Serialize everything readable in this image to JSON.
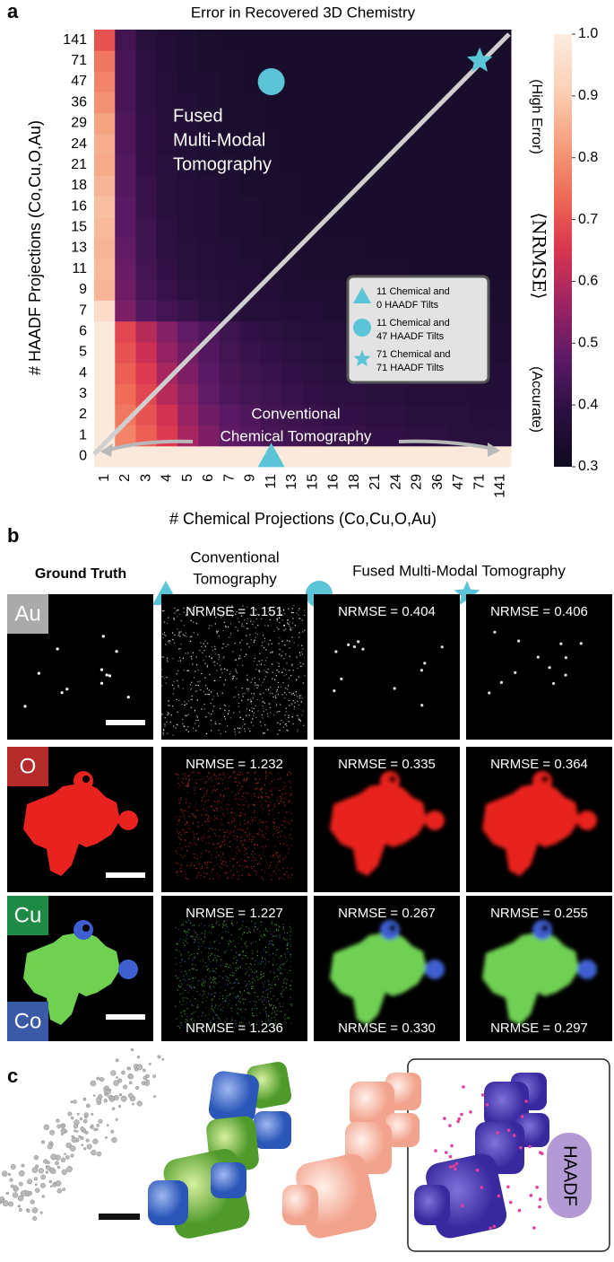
{
  "chart_data": {
    "type": "heatmap",
    "panel_label": "a",
    "title": "Error in Recovered 3D Chemistry",
    "x_label": "# Chemical Projections (Co,Cu,O,Au)",
    "y_label": "# HAADF Projections (Co,Cu,O,Au)",
    "x": [
      "1",
      "2",
      "3",
      "4",
      "5",
      "6",
      "7",
      "9",
      "11",
      "13",
      "15",
      "16",
      "18",
      "21",
      "24",
      "29",
      "36",
      "47",
      "71",
      "141"
    ],
    "y": [
      "0",
      "1",
      "2",
      "3",
      "4",
      "5",
      "6",
      "7",
      "9",
      "11",
      "13",
      "15",
      "16",
      "18",
      "21",
      "24",
      "29",
      "36",
      "47",
      "71",
      "141"
    ],
    "values": [
      [
        0.99,
        0.99,
        0.99,
        0.99,
        0.99,
        0.99,
        0.99,
        0.99,
        0.99,
        0.99,
        0.99,
        0.99,
        0.99,
        0.99,
        0.99,
        0.99,
        0.99,
        0.99,
        0.99,
        0.99
      ],
      [
        0.99,
        0.78,
        0.72,
        0.66,
        0.58,
        0.52,
        0.48,
        0.46,
        0.44,
        0.43,
        0.42,
        0.41,
        0.41,
        0.4,
        0.4,
        0.39,
        0.39,
        0.38,
        0.38,
        0.38
      ],
      [
        0.99,
        0.76,
        0.7,
        0.64,
        0.56,
        0.5,
        0.47,
        0.45,
        0.43,
        0.42,
        0.41,
        0.4,
        0.4,
        0.39,
        0.39,
        0.38,
        0.38,
        0.38,
        0.37,
        0.37
      ],
      [
        0.99,
        0.74,
        0.68,
        0.6,
        0.54,
        0.48,
        0.45,
        0.43,
        0.42,
        0.41,
        0.4,
        0.39,
        0.39,
        0.38,
        0.38,
        0.37,
        0.37,
        0.37,
        0.36,
        0.36
      ],
      [
        0.99,
        0.72,
        0.66,
        0.58,
        0.52,
        0.47,
        0.44,
        0.42,
        0.41,
        0.4,
        0.39,
        0.38,
        0.38,
        0.37,
        0.37,
        0.36,
        0.36,
        0.36,
        0.36,
        0.36
      ],
      [
        0.99,
        0.7,
        0.63,
        0.55,
        0.5,
        0.46,
        0.43,
        0.41,
        0.4,
        0.39,
        0.38,
        0.37,
        0.37,
        0.36,
        0.36,
        0.36,
        0.35,
        0.35,
        0.35,
        0.35
      ],
      [
        0.99,
        0.68,
        0.6,
        0.53,
        0.48,
        0.45,
        0.42,
        0.4,
        0.39,
        0.38,
        0.37,
        0.37,
        0.36,
        0.36,
        0.35,
        0.35,
        0.35,
        0.35,
        0.35,
        0.35
      ],
      [
        0.95,
        0.52,
        0.46,
        0.43,
        0.41,
        0.39,
        0.38,
        0.37,
        0.37,
        0.36,
        0.36,
        0.35,
        0.35,
        0.35,
        0.35,
        0.34,
        0.34,
        0.34,
        0.34,
        0.34
      ],
      [
        0.86,
        0.5,
        0.44,
        0.41,
        0.39,
        0.38,
        0.37,
        0.36,
        0.36,
        0.35,
        0.35,
        0.35,
        0.34,
        0.34,
        0.34,
        0.34,
        0.34,
        0.34,
        0.34,
        0.34
      ],
      [
        0.87,
        0.49,
        0.43,
        0.4,
        0.38,
        0.37,
        0.36,
        0.36,
        0.35,
        0.35,
        0.34,
        0.34,
        0.34,
        0.34,
        0.34,
        0.33,
        0.33,
        0.33,
        0.33,
        0.33
      ],
      [
        0.86,
        0.48,
        0.42,
        0.39,
        0.38,
        0.37,
        0.36,
        0.35,
        0.35,
        0.34,
        0.34,
        0.34,
        0.34,
        0.33,
        0.33,
        0.33,
        0.33,
        0.33,
        0.33,
        0.33
      ],
      [
        0.87,
        0.47,
        0.42,
        0.39,
        0.37,
        0.36,
        0.35,
        0.35,
        0.34,
        0.34,
        0.34,
        0.33,
        0.33,
        0.33,
        0.33,
        0.33,
        0.33,
        0.33,
        0.33,
        0.33
      ],
      [
        0.88,
        0.47,
        0.41,
        0.38,
        0.37,
        0.36,
        0.35,
        0.35,
        0.34,
        0.34,
        0.33,
        0.33,
        0.33,
        0.33,
        0.33,
        0.33,
        0.33,
        0.33,
        0.33,
        0.33
      ],
      [
        0.86,
        0.46,
        0.41,
        0.38,
        0.37,
        0.36,
        0.35,
        0.34,
        0.34,
        0.34,
        0.33,
        0.33,
        0.33,
        0.33,
        0.33,
        0.33,
        0.33,
        0.33,
        0.33,
        0.33
      ],
      [
        0.84,
        0.46,
        0.4,
        0.38,
        0.36,
        0.35,
        0.35,
        0.34,
        0.34,
        0.33,
        0.33,
        0.33,
        0.33,
        0.33,
        0.33,
        0.33,
        0.33,
        0.33,
        0.33,
        0.33
      ],
      [
        0.85,
        0.45,
        0.4,
        0.37,
        0.36,
        0.35,
        0.34,
        0.34,
        0.34,
        0.33,
        0.33,
        0.33,
        0.33,
        0.33,
        0.33,
        0.33,
        0.33,
        0.33,
        0.33,
        0.33
      ],
      [
        0.83,
        0.45,
        0.4,
        0.37,
        0.36,
        0.35,
        0.34,
        0.34,
        0.33,
        0.33,
        0.33,
        0.33,
        0.33,
        0.33,
        0.33,
        0.33,
        0.33,
        0.33,
        0.33,
        0.33
      ],
      [
        0.8,
        0.44,
        0.39,
        0.37,
        0.36,
        0.35,
        0.34,
        0.34,
        0.33,
        0.33,
        0.33,
        0.33,
        0.33,
        0.33,
        0.33,
        0.33,
        0.33,
        0.33,
        0.33,
        0.33
      ],
      [
        0.78,
        0.44,
        0.39,
        0.37,
        0.35,
        0.35,
        0.34,
        0.33,
        0.33,
        0.33,
        0.33,
        0.33,
        0.33,
        0.33,
        0.33,
        0.33,
        0.33,
        0.33,
        0.33,
        0.33
      ],
      [
        0.76,
        0.44,
        0.39,
        0.36,
        0.35,
        0.34,
        0.34,
        0.33,
        0.33,
        0.33,
        0.33,
        0.33,
        0.33,
        0.33,
        0.33,
        0.33,
        0.33,
        0.33,
        0.33,
        0.33
      ],
      [
        0.7,
        0.43,
        0.38,
        0.36,
        0.35,
        0.34,
        0.33,
        0.33,
        0.33,
        0.33,
        0.33,
        0.33,
        0.33,
        0.33,
        0.33,
        0.33,
        0.33,
        0.33,
        0.33,
        0.33
      ]
    ],
    "colormap": [
      "#0f0b1f",
      "#2a1040",
      "#5c1a66",
      "#9c2363",
      "#d9344f",
      "#ef6a55",
      "#f6a07f",
      "#fbd2b8",
      "#fbece0"
    ],
    "zlim": [
      0.3,
      1.0
    ],
    "zticks": [
      0.3,
      0.4,
      0.5,
      0.6,
      0.7,
      0.8,
      0.9,
      {
        "value": 1,
        "label": "1.0"
      }
    ],
    "colorbar_label": "⟨NRMSE⟩",
    "colorbar_high": "(High Error)",
    "colorbar_low": "(Accurate)",
    "annotations": [
      {
        "lines": [
          "Fused",
          "Multi-Modal",
          "Tomography"
        ]
      },
      {
        "lines": [
          "Conventional",
          "Chemical Tomography"
        ]
      }
    ],
    "markers": [
      {
        "shape": "triangle",
        "x": "11",
        "y": "0",
        "legend": [
          "11 Chemical and",
          "0 HAADF Tilts"
        ]
      },
      {
        "shape": "circle",
        "x": "11",
        "y": "47",
        "legend": [
          "11 Chemical and",
          "47 HAADF Tilts"
        ]
      },
      {
        "shape": "star",
        "x": "71",
        "y": "71",
        "legend": [
          "71 Chemical and",
          "71 HAADF Tilts"
        ]
      }
    ],
    "marker_color": "#5bc4d6"
  },
  "panel_b": {
    "label": "b",
    "headers": [
      "Ground Truth",
      [
        "Conventional",
        "Tomography"
      ],
      "Fused Multi-Modal Tomography"
    ],
    "rows": [
      {
        "elements": [
          "Au"
        ],
        "labels": [
          "NRMSE = 1.151",
          "NRMSE = 0.404",
          "NRMSE = 0.406"
        ]
      },
      {
        "elements": [
          "O"
        ],
        "labels": [
          "NRMSE = 1.232",
          "NRMSE = 0.335",
          "NRMSE = 0.364"
        ]
      },
      {
        "elements": [
          "Cu",
          "Co"
        ],
        "labels": [
          "NRMSE = 1.227",
          "NRMSE = 0.267",
          "NRMSE = 0.255"
        ],
        "bottom_labels": [
          "NRMSE = 1.236",
          "NRMSE = 0.330",
          "NRMSE = 0.297"
        ]
      }
    ]
  },
  "panel_c": {
    "label": "c",
    "tag": "HAADF"
  }
}
